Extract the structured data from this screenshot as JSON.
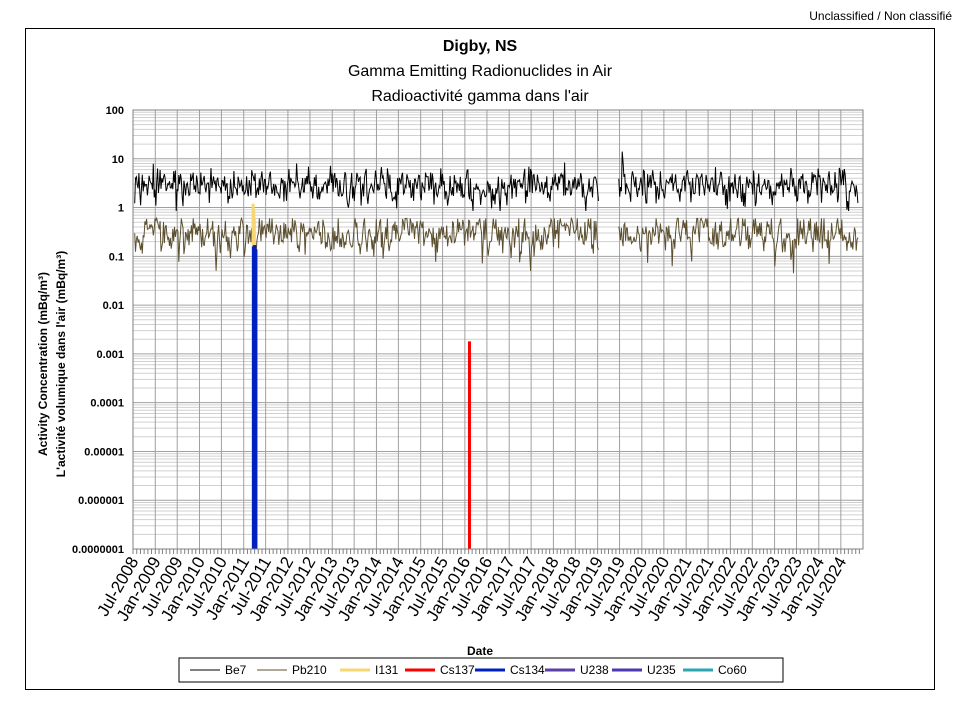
{
  "classification": "Unclassified / Non classifié",
  "chart_data": {
    "type": "line",
    "title": "Digby, NS",
    "subtitle": "Gamma Emitting Radionuclides in Air",
    "subtitle2": "Radioactivité gamma dans l'air",
    "xlabel": "Date",
    "ylabel": "Activity Concentration  (mBq/m³)",
    "ylabel2": "L'activité volumique dans l'air (mBq/m³)",
    "y_scale": "log",
    "ylim": [
      1e-07,
      100
    ],
    "xlim": [
      "2008-07-01",
      "2024-12-31"
    ],
    "grid": true,
    "legend_position": "bottom",
    "y_ticks": [
      "100",
      "10",
      "1",
      "0.1",
      "0.01",
      "0.001",
      "0.0001",
      "0.00001",
      "0.000001",
      "0.0000001"
    ],
    "x_ticks": [
      "Jul-2008",
      "Jan-2009",
      "Jul-2009",
      "Jan-2010",
      "Jul-2010",
      "Jan-2011",
      "Jul-2011",
      "Jan-2012",
      "Jul-2012",
      "Jan-2013",
      "Jul-2013",
      "Jan-2014",
      "Jul-2014",
      "Jan-2015",
      "Jul-2015",
      "Jan-2016",
      "Jul-2016",
      "Jan-2017",
      "Jul-2017",
      "Jan-2018",
      "Jul-2018",
      "Jan-2019",
      "Jul-2019",
      "Jan-2020",
      "Jul-2020",
      "Jan-2021",
      "Jul-2021",
      "Jan-2022",
      "Jul-2022",
      "Jan-2023",
      "Jul-2023",
      "Jan-2024",
      "Jul-2024"
    ],
    "series": [
      {
        "name": "Be7",
        "color": "#000000",
        "kind": "weekly_line",
        "typical": 2.8,
        "spread": 0.45,
        "min": 0.85,
        "max": 14,
        "gaps": [
          [
            "2019-01-15",
            "2019-06-20"
          ]
        ]
      },
      {
        "name": "Pb210",
        "color": "#5c5030",
        "kind": "weekly_line",
        "typical": 0.3,
        "spread": 0.45,
        "min": 0.045,
        "max": 1.0,
        "gaps": [
          [
            "2019-01-15",
            "2019-06-20"
          ]
        ]
      },
      {
        "name": "I131",
        "color": "#f7d774",
        "kind": "spike",
        "points": [
          {
            "x": "2011-03-20",
            "y": 1.2
          },
          {
            "x": "2011-03-25",
            "y": 0.9
          },
          {
            "x": "2011-03-30",
            "y": 0.6
          }
        ]
      },
      {
        "name": "Cs137",
        "color": "#ff0000",
        "kind": "spike",
        "points": [
          {
            "x": "2011-03-25",
            "y": 0.15
          },
          {
            "x": "2011-03-30",
            "y": 0.17
          },
          {
            "x": "2016-02-08",
            "y": 0.0018
          }
        ]
      },
      {
        "name": "Cs134",
        "color": "#0020c0",
        "kind": "spike",
        "points": [
          {
            "x": "2011-03-22",
            "y": 0.16
          },
          {
            "x": "2011-04-02",
            "y": 0.17
          },
          {
            "x": "2011-04-12",
            "y": 0.14
          }
        ]
      },
      {
        "name": "U238",
        "color": "#5a3fa6",
        "kind": "none",
        "points": []
      },
      {
        "name": "U235",
        "color": "#4a39b0",
        "kind": "none",
        "points": []
      },
      {
        "name": "Co60",
        "color": "#2ba6b3",
        "kind": "none",
        "points": []
      }
    ]
  }
}
